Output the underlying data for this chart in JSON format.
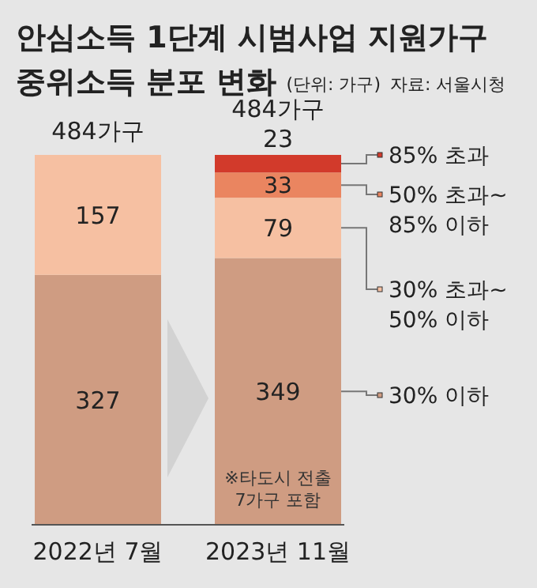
{
  "chart_data": {
    "type": "bar",
    "stacked": true,
    "title": "안심소득 1단계 시범사업 지원가구",
    "subtitle": "중위소득 분포 변화",
    "annotations": [
      "(단위: 가구)",
      "자료: 서울시청",
      "※타도시 전출 7가구 포함"
    ],
    "categories": [
      "2022년 7월",
      "2023년 11월"
    ],
    "series": [
      {
        "name": "30% 이하",
        "color": "#cf9c82",
        "values": [
          327,
          349
        ]
      },
      {
        "name": "30% 초과~50% 이하",
        "color": "#f6c0a2",
        "values": [
          157,
          79
        ]
      },
      {
        "name": "50% 초과~85% 이하",
        "color": "#ea8560",
        "values": [
          null,
          33
        ]
      },
      {
        "name": "85% 초과",
        "color": "#d23a2b",
        "values": [
          null,
          23
        ]
      }
    ],
    "data_labels": true,
    "totals": [
      "484가구",
      "484가구"
    ],
    "legend": "right"
  }
}
